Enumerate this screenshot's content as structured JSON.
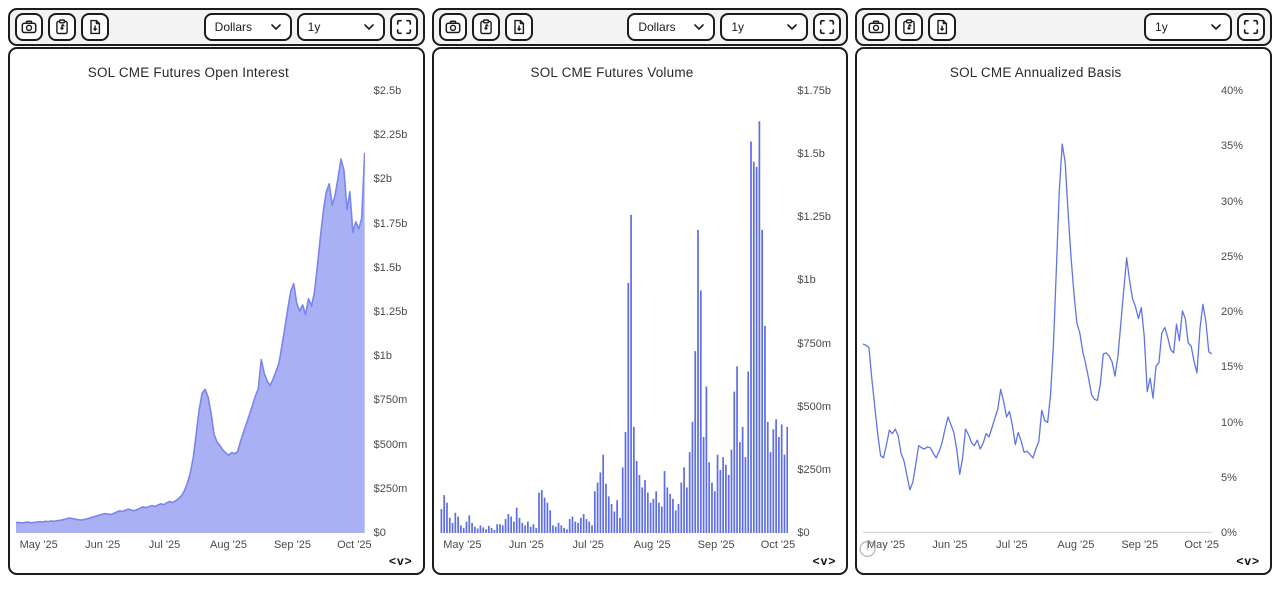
{
  "logo_text": "<v>",
  "colors": {
    "area_fill": "#a9b0f3",
    "area_line": "#7b85ee",
    "bar": "#5f6fe3",
    "line": "#5f75e6",
    "border": "#1c1c1c",
    "toolbar_bg": "#f3f3f3",
    "axis_text": "#4a4a4a",
    "grid": "#d8d8d8"
  },
  "panels": [
    {
      "title": "SOL CME Futures Open Interest",
      "controls": {
        "unit": "Dollars",
        "range": "1y"
      }
    },
    {
      "title": "SOL CME Futures Volume",
      "controls": {
        "unit": "Dollars",
        "range": "1y"
      }
    },
    {
      "title": "SOL CME Annualized Basis",
      "controls": {
        "range": "1y"
      }
    }
  ],
  "x_axis": {
    "tick_labels": [
      "May '25",
      "Jun '25",
      "Jul '25",
      "Aug '25",
      "Sep '25",
      "Oct '25"
    ],
    "tick_days": [
      11,
      42,
      72,
      103,
      134,
      164
    ],
    "domain_days": 169
  },
  "chart_data": [
    {
      "type": "area",
      "title": "SOL CME Futures Open Interest",
      "value_unit": "$m",
      "ylim": [
        0,
        2500
      ],
      "y_ticks": {
        "labels": [
          "$2.5b",
          "$2.25b",
          "$2b",
          "$1.75b",
          "$1.5b",
          "$1.25b",
          "$1b",
          "$750m",
          "$500m",
          "$250m",
          "$0"
        ],
        "values": [
          2500,
          2250,
          2000,
          1750,
          1500,
          1250,
          1000,
          750,
          500,
          250,
          0
        ]
      },
      "values": [
        58,
        60,
        57,
        60,
        62,
        58,
        60,
        62,
        64,
        63,
        66,
        65,
        68,
        66,
        70,
        72,
        75,
        80,
        85,
        82,
        78,
        75,
        73,
        76,
        80,
        85,
        90,
        95,
        100,
        105,
        110,
        108,
        104,
        110,
        118,
        125,
        122,
        128,
        135,
        130,
        126,
        133,
        140,
        148,
        143,
        150,
        155,
        150,
        158,
        165,
        160,
        170,
        178,
        172,
        182,
        195,
        210,
        240,
        280,
        340,
        430,
        560,
        700,
        790,
        812,
        770,
        680,
        560,
        515,
        495,
        470,
        452,
        440,
        455,
        448,
        460,
        520,
        570,
        620,
        670,
        720,
        775,
        815,
        980,
        905,
        860,
        835,
        870,
        915,
        960,
        1060,
        1160,
        1270,
        1370,
        1410,
        1300,
        1255,
        1290,
        1235,
        1325,
        1285,
        1360,
        1510,
        1670,
        1820,
        1930,
        1975,
        1855,
        1910,
        2010,
        2115,
        2050,
        1830,
        1930,
        1700,
        1760,
        1720,
        1780,
        2150
      ]
    },
    {
      "type": "bar",
      "title": "SOL CME Futures Volume",
      "value_unit": "$m",
      "ylim": [
        0,
        1750
      ],
      "y_ticks": {
        "labels": [
          "$1.75b",
          "$1.5b",
          "$1.25b",
          "$1b",
          "$750m",
          "$500m",
          "$250m",
          "$0"
        ],
        "values": [
          1750,
          1500,
          1250,
          1000,
          750,
          500,
          250,
          0
        ]
      },
      "values": [
        95,
        150,
        120,
        60,
        40,
        80,
        65,
        30,
        20,
        45,
        70,
        40,
        25,
        18,
        30,
        22,
        15,
        28,
        20,
        12,
        35,
        35,
        30,
        55,
        75,
        65,
        45,
        100,
        60,
        40,
        30,
        45,
        25,
        35,
        20,
        160,
        170,
        140,
        120,
        90,
        30,
        25,
        40,
        30,
        20,
        15,
        55,
        65,
        45,
        40,
        60,
        75,
        55,
        45,
        30,
        165,
        200,
        240,
        310,
        195,
        145,
        115,
        85,
        130,
        60,
        260,
        400,
        990,
        1260,
        420,
        285,
        230,
        180,
        210,
        160,
        120,
        135,
        165,
        120,
        105,
        245,
        180,
        155,
        135,
        90,
        115,
        200,
        260,
        180,
        320,
        440,
        720,
        1200,
        960,
        380,
        580,
        280,
        200,
        165,
        310,
        250,
        300,
        270,
        230,
        330,
        560,
        660,
        360,
        420,
        300,
        640,
        1550,
        1470,
        1450,
        1630,
        1200,
        820,
        440,
        320,
        410,
        450,
        380,
        430,
        310,
        420
      ]
    },
    {
      "type": "line",
      "title": "SOL CME Annualized Basis",
      "value_unit": "%",
      "ylim": [
        0,
        40
      ],
      "zero_gridline": true,
      "y_ticks": {
        "labels": [
          "40%",
          "35%",
          "30%",
          "25%",
          "20%",
          "15%",
          "10%",
          "5%",
          "0%"
        ],
        "values": [
          40,
          35,
          30,
          25,
          20,
          15,
          10,
          5,
          0
        ]
      },
      "values": [
        17.1,
        17.0,
        16.8,
        14.0,
        11.5,
        9.0,
        7.0,
        6.8,
        8.0,
        9.3,
        9.0,
        9.4,
        8.8,
        7.2,
        6.5,
        5.2,
        3.9,
        4.6,
        6.2,
        7.9,
        7.7,
        7.6,
        7.8,
        7.7,
        7.2,
        6.8,
        7.4,
        8.2,
        9.4,
        10.5,
        9.8,
        9.1,
        7.6,
        5.3,
        6.8,
        9.4,
        8.9,
        8.2,
        7.9,
        8.4,
        7.6,
        8.1,
        9.0,
        8.7,
        9.5,
        10.4,
        11.2,
        13.0,
        11.9,
        10.5,
        11.0,
        9.7,
        8.0,
        9.1,
        8.3,
        7.3,
        7.4,
        7.1,
        6.8,
        7.6,
        8.3,
        11.1,
        10.2,
        10.0,
        12.5,
        17.0,
        24.0,
        31.0,
        35.2,
        33.5,
        29.0,
        25.0,
        21.6,
        19.0,
        18.1,
        16.4,
        15.3,
        14.0,
        12.5,
        12.1,
        12.0,
        13.5,
        16.2,
        16.3,
        16.0,
        15.5,
        14.2,
        16.0,
        19.0,
        22.0,
        24.9,
        22.8,
        21.2,
        20.5,
        19.4,
        20.4,
        17.8,
        12.8,
        14.0,
        12.2,
        15.1,
        15.4,
        18.1,
        18.6,
        17.7,
        16.6,
        16.3,
        18.9,
        17.4,
        20.1,
        19.4,
        17.2,
        16.9,
        15.5,
        14.5,
        18.5,
        20.7,
        19.2,
        16.4,
        16.2
      ]
    }
  ]
}
